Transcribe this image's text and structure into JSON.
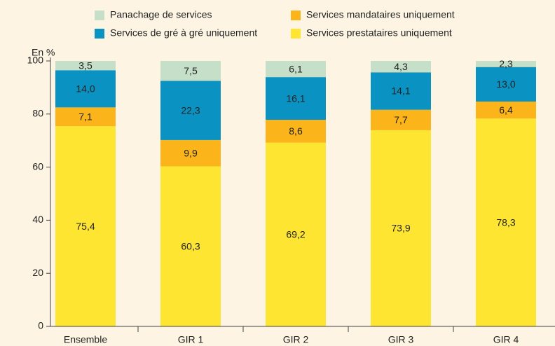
{
  "chart_data": {
    "type": "stacked_bar",
    "y_label": "En %",
    "categories": [
      "Ensemble",
      "GIR 1",
      "GIR 2",
      "GIR 3",
      "GIR 4"
    ],
    "series": [
      {
        "name": "Services prestataires uniquement",
        "color": "#fde532",
        "values": [
          75.4,
          60.3,
          69.2,
          73.9,
          78.3
        ],
        "value_labels": [
          "75,4",
          "60,3",
          "69,2",
          "73,9",
          "78,3"
        ]
      },
      {
        "name": "Services mandataires uniquement",
        "color": "#fbb41a",
        "values": [
          7.1,
          9.9,
          8.6,
          7.7,
          6.4
        ],
        "value_labels": [
          "7,1",
          "9,9",
          "8,6",
          "7,7",
          "6,4"
        ]
      },
      {
        "name": "Services de gré à gré uniquement",
        "color": "#0a93c2",
        "values": [
          14.0,
          22.3,
          16.1,
          14.1,
          13.0
        ],
        "value_labels": [
          "14,0",
          "22,3",
          "16,1",
          "14,1",
          "13,0"
        ]
      },
      {
        "name": "Panachage de services",
        "color": "#c6dfc8",
        "values": [
          3.5,
          7.5,
          6.1,
          4.3,
          2.3
        ],
        "value_labels": [
          "3,5",
          "7,5",
          "6,1",
          "4,3",
          "2,3"
        ]
      }
    ],
    "ylim": [
      0,
      100
    ],
    "yticks": [
      0,
      20,
      40,
      60,
      80,
      100
    ],
    "grid": false,
    "legend": "top"
  }
}
